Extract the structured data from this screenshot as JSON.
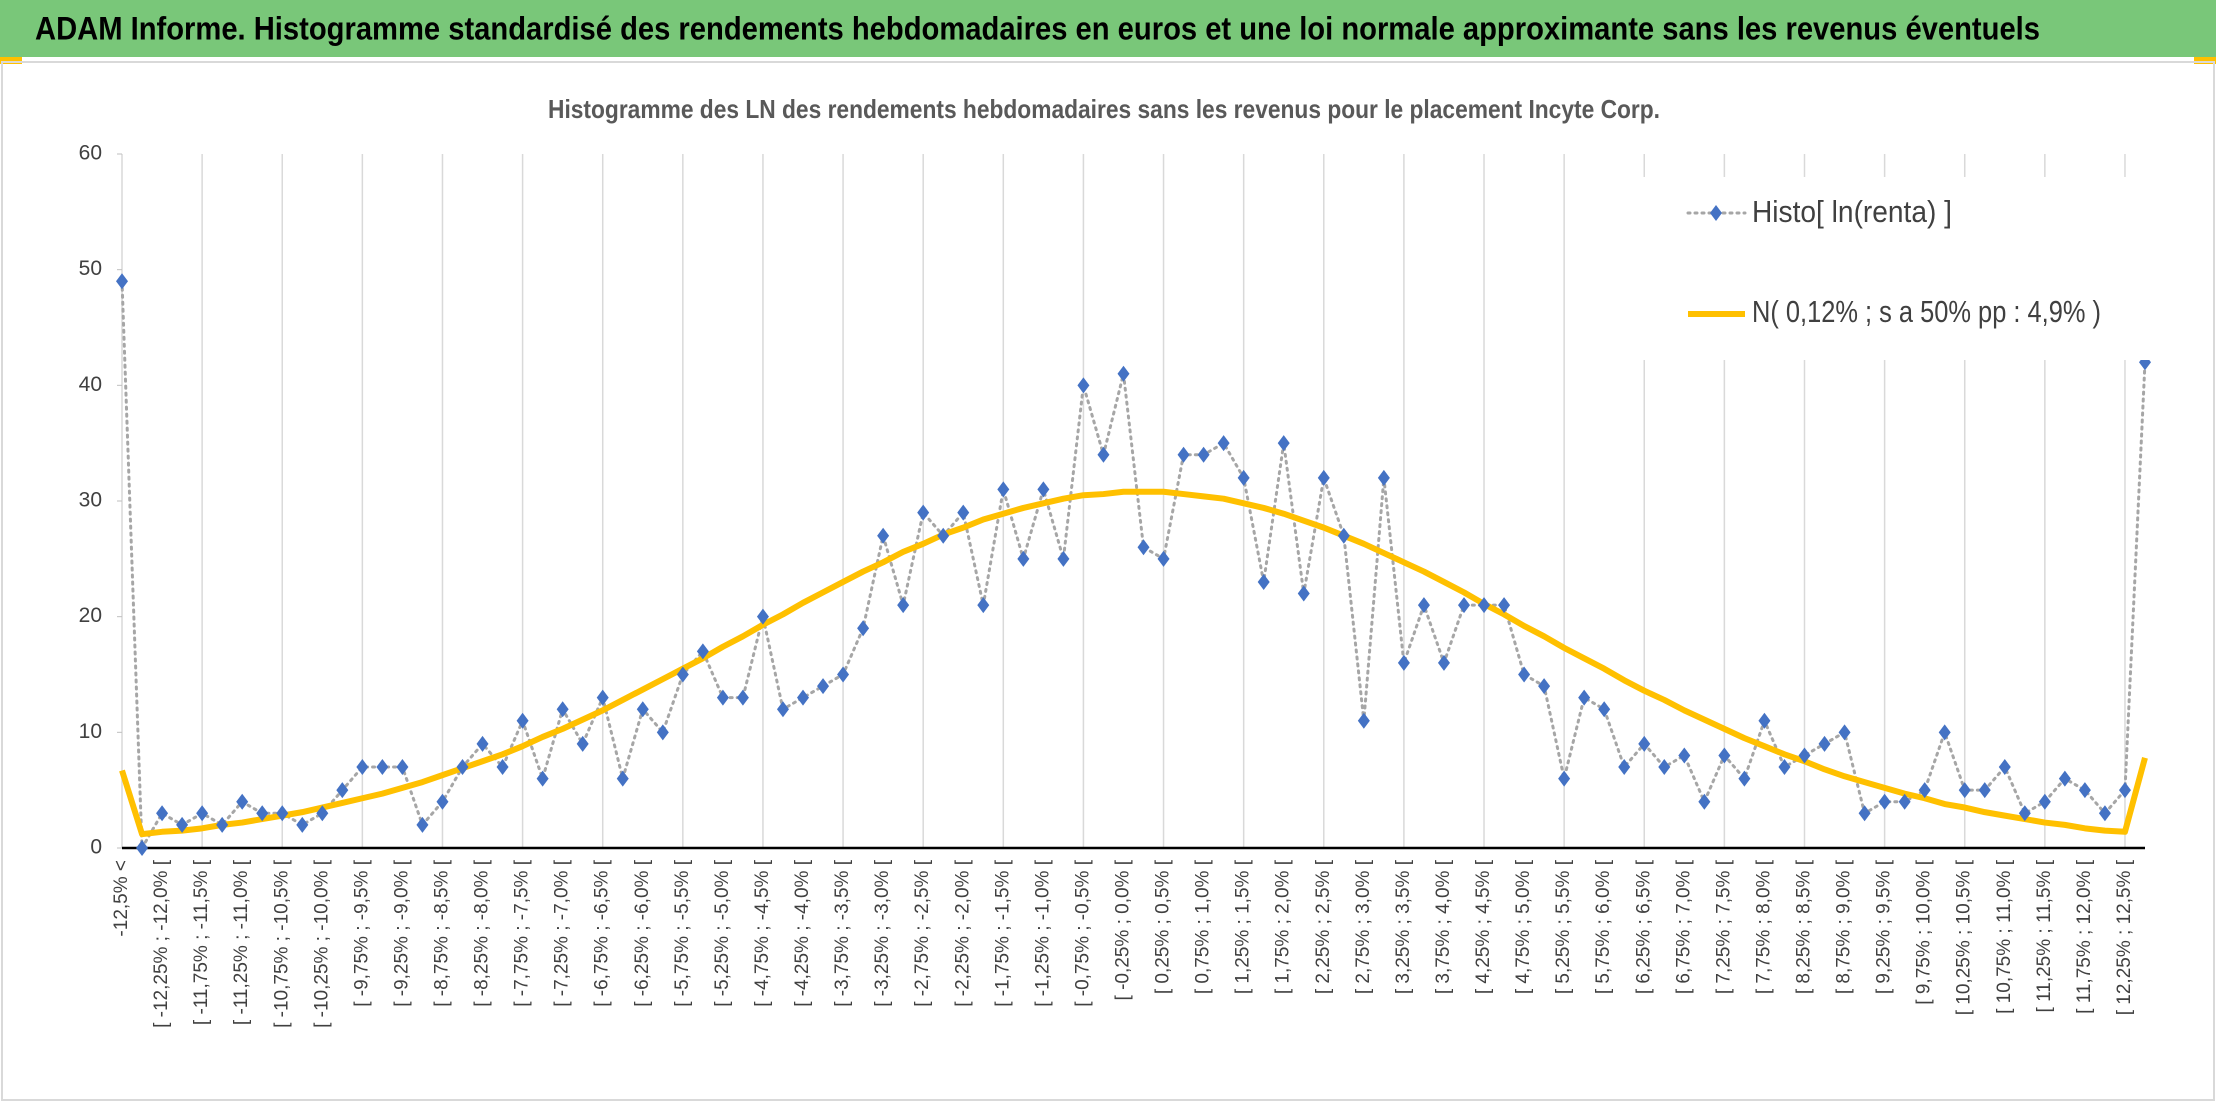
{
  "chart_data": {
    "type": "line",
    "title": "ADAM Informe. Histogramme standardisé des rendements hebdomadaires en euros et une loi normale approximante sans les revenus éventuels",
    "subtitle": "Histogramme des LN des rendements hebdomadaires sans les revenus pour le placement Incyte Corp.",
    "categories": [
      "-12,5% <",
      null,
      "[ -12,25% ; -12,0% [",
      null,
      "[ -11,75% ; -11,5% [",
      null,
      "[ -11,25% ; -11,0% [",
      null,
      "[ -10,75% ; -10,5% [",
      null,
      "[ -10,25% ; -10,0% [",
      null,
      "[ -9,75% ; -9,5% [",
      null,
      "[ -9,25% ; -9,0% [",
      null,
      "[ -8,75% ; -8,5% [",
      null,
      "[ -8,25% ; -8,0% [",
      null,
      "[ -7,75% ; -7,5% [",
      null,
      "[ -7,25% ; -7,0% [",
      null,
      "[ -6,75% ; -6,5% [",
      null,
      "[ -6,25% ; -6,0% [",
      null,
      "[ -5,75% ; -5,5% [",
      null,
      "[ -5,25% ; -5,0% [",
      null,
      "[ -4,75% ; -4,5% [",
      null,
      "[ -4,25% ; -4,0% [",
      null,
      "[ -3,75% ; -3,5% [",
      null,
      "[ -3,25% ; -3,0% [",
      null,
      "[ -2,75% ; -2,5% [",
      null,
      "[ -2,25% ; -2,0% [",
      null,
      "[ -1,75% ; -1,5% [",
      null,
      "[ -1,25% ; -1,0% [",
      null,
      "[ -0,75% ; -0,5% [",
      null,
      "[ -0,25% ; 0,0% [",
      null,
      "[ 0,25% ; 0,5% [",
      null,
      "[ 0,75% ; 1,0% [",
      null,
      "[ 1,25% ; 1,5% [",
      null,
      "[ 1,75% ; 2,0% [",
      null,
      "[ 2,25% ; 2,5% [",
      null,
      "[ 2,75% ; 3,0% [",
      null,
      "[ 3,25% ; 3,5% [",
      null,
      "[ 3,75% ; 4,0% [",
      null,
      "[ 4,25% ; 4,5% [",
      null,
      "[ 4,75% ; 5,0% [",
      null,
      "[ 5,25% ; 5,5% [",
      null,
      "[ 5,75% ; 6,0% [",
      null,
      "[ 6,25% ; 6,5% [",
      null,
      "[ 6,75% ; 7,0% [",
      null,
      "[ 7,25% ; 7,5% [",
      null,
      "[ 7,75% ; 8,0% [",
      null,
      "[ 8,25% ; 8,5% [",
      null,
      "[ 8,75% ; 9,0% [",
      null,
      "[ 9,25% ; 9,5% [",
      null,
      "[ 9,75% ; 10,0% [",
      null,
      "[ 10,25% ; 10,5% [",
      null,
      "[ 10,75% ; 11,0% [",
      null,
      "[ 11,25% ; 11,5% [",
      null,
      "[ 11,75% ; 12,0% [",
      null,
      "[ 12,25% ; 12,5% [",
      null
    ],
    "series": [
      {
        "name": "Histo[ ln(renta) ]",
        "color": "#4472c4",
        "line_color": "#a6a6a6",
        "values": [
          49,
          0,
          3,
          2,
          3,
          2,
          4,
          3,
          3,
          2,
          3,
          5,
          7,
          7,
          7,
          2,
          4,
          7,
          9,
          7,
          11,
          6,
          12,
          9,
          13,
          6,
          12,
          10,
          15,
          17,
          13,
          13,
          20,
          12,
          13,
          14,
          15,
          19,
          27,
          21,
          29,
          27,
          29,
          21,
          31,
          25,
          31,
          25,
          40,
          34,
          41,
          26,
          25,
          34,
          34,
          35,
          32,
          23,
          35,
          22,
          32,
          27,
          11,
          32,
          16,
          21,
          16,
          21,
          21,
          21,
          15,
          14,
          6,
          13,
          12,
          7,
          9,
          7,
          8,
          4,
          8,
          6,
          11,
          7,
          8,
          9,
          10,
          3,
          4,
          4,
          5,
          10,
          5,
          5,
          7,
          3,
          4,
          6,
          5,
          3,
          5,
          42
        ]
      },
      {
        "name": "N( 0,12% ; s a 50% pp : 4,9% )",
        "color": "#ffc000",
        "values": [
          6.7,
          1.2,
          1.4,
          1.5,
          1.7,
          2.0,
          2.2,
          2.5,
          2.8,
          3.1,
          3.5,
          3.9,
          4.3,
          4.7,
          5.2,
          5.7,
          6.3,
          6.9,
          7.5,
          8.1,
          8.8,
          9.6,
          10.3,
          11.1,
          11.9,
          12.8,
          13.7,
          14.6,
          15.5,
          16.4,
          17.4,
          18.3,
          19.3,
          20.2,
          21.2,
          22.1,
          23.0,
          23.9,
          24.7,
          25.6,
          26.3,
          27.1,
          27.7,
          28.4,
          28.9,
          29.4,
          29.8,
          30.2,
          30.5,
          30.6,
          30.8,
          30.8,
          30.8,
          30.6,
          30.4,
          30.2,
          29.8,
          29.4,
          28.9,
          28.3,
          27.7,
          27.0,
          26.3,
          25.5,
          24.7,
          23.9,
          23.0,
          22.1,
          21.1,
          20.2,
          19.2,
          18.3,
          17.3,
          16.4,
          15.5,
          14.5,
          13.6,
          12.8,
          11.9,
          11.1,
          10.3,
          9.5,
          8.8,
          8.1,
          7.5,
          6.8,
          6.2,
          5.7,
          5.2,
          4.7,
          4.3,
          3.8,
          3.5,
          3.1,
          2.8,
          2.5,
          2.2,
          2.0,
          1.7,
          1.5,
          1.4,
          7.8
        ]
      }
    ],
    "ylim": [
      0,
      60
    ],
    "yticks": [
      0,
      10,
      20,
      30,
      40,
      50,
      60
    ],
    "grid": "x",
    "legend": "top-right"
  }
}
